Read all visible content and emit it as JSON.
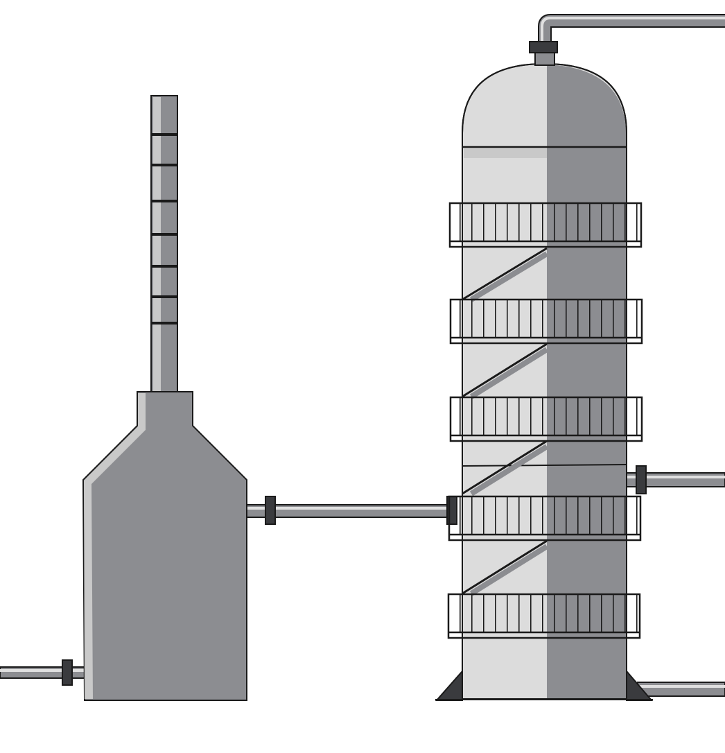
{
  "scene": {
    "components": [
      "tank-with-vent-stack",
      "scrubber-tower",
      "connecting-pipes",
      "pipe-flanges",
      "walkway-platforms",
      "ladder-stairs"
    ],
    "platform_count": 5,
    "colors": {
      "background": "#ffffff",
      "outline": "#1a1a1a",
      "light_metal": "#dcdcdc",
      "mid_metal": "#c9c9c9",
      "dark_metal": "#8c8d91",
      "flange": "#3a3b3e",
      "pipe_highlight": "#e0e0e0"
    }
  }
}
